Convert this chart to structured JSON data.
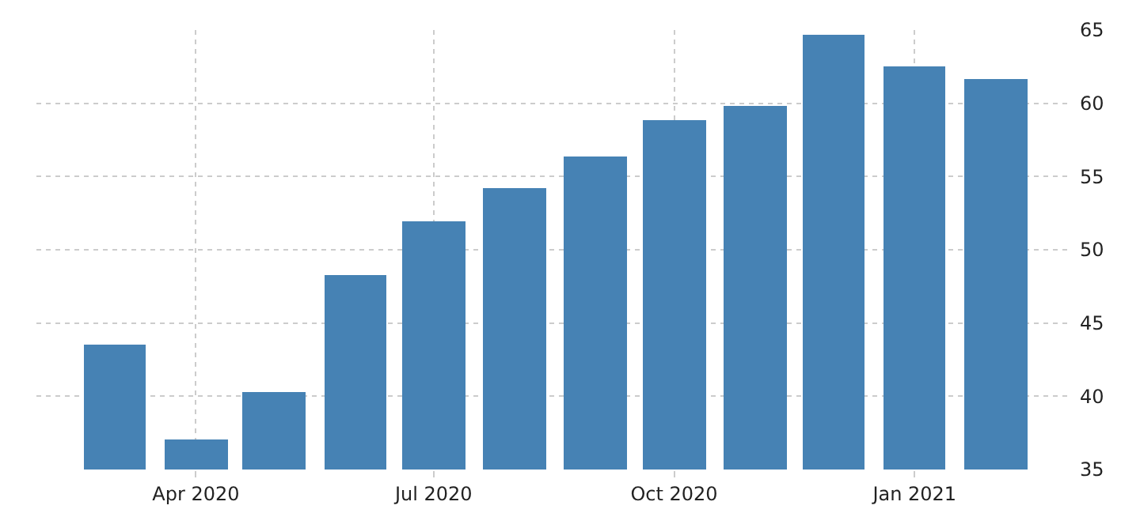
{
  "chart_data": {
    "type": "bar",
    "x": [
      "2020-03",
      "2020-04",
      "2020-05",
      "2020-06",
      "2020-07",
      "2020-08",
      "2020-09",
      "2020-10",
      "2020-11",
      "2020-12",
      "2021-01",
      "2021-02"
    ],
    "series": [
      {
        "color": "#4682b4",
        "values": [
          43.5,
          37.1,
          40.3,
          48.3,
          51.9,
          54.2,
          56.4,
          58.9,
          59.8,
          64.7,
          62.5,
          61.7
        ]
      }
    ],
    "xlim": [
      "2020-01-31",
      "2021-03-01"
    ],
    "xticks": [
      {
        "value": "2020-04",
        "label": "Apr 2020"
      },
      {
        "value": "2020-07",
        "label": "Jul 2020"
      },
      {
        "value": "2020-10",
        "label": "Oct 2020"
      },
      {
        "value": "2021-01",
        "label": "Jan 2021"
      }
    ],
    "ylim": [
      35,
      65
    ],
    "yticks": [
      35,
      40,
      45,
      50,
      55,
      60,
      65
    ],
    "grid": true,
    "legend": false
  }
}
